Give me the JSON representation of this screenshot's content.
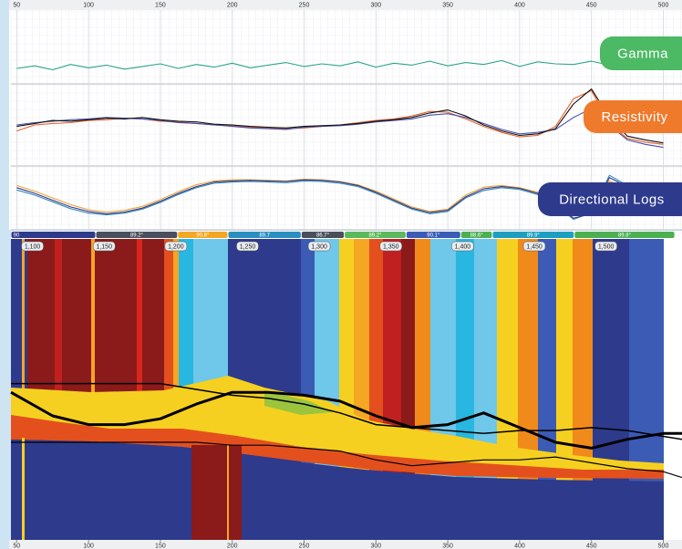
{
  "chart_data": [
    {
      "type": "line",
      "title": "Gamma",
      "badge_color": "#4cb964",
      "xlim": [
        46,
        513
      ],
      "xticks": [
        50,
        100,
        150,
        200,
        250,
        300,
        350,
        400,
        450,
        500
      ],
      "ylim": [
        0,
        100
      ],
      "grid": true,
      "x": [
        50,
        62.5,
        75,
        87.5,
        100,
        112.5,
        125,
        137.5,
        150,
        162.5,
        175,
        187.5,
        200,
        212.5,
        225,
        237.5,
        250,
        262.5,
        275,
        287.5,
        300,
        312.5,
        325,
        337.5,
        350,
        362.5,
        375,
        387.5,
        400,
        412.5,
        425,
        437.5,
        450,
        462.5,
        475,
        487.5,
        500
      ],
      "series": [
        {
          "color": "#2aa58a",
          "values": [
            18,
            22,
            16,
            24,
            19,
            23,
            17,
            21,
            25,
            18,
            24,
            20,
            26,
            19,
            23,
            27,
            21,
            25,
            22,
            28,
            20,
            26,
            23,
            29,
            22,
            27,
            24,
            30,
            21,
            28,
            25,
            24,
            29,
            23,
            27,
            26,
            30
          ]
        }
      ]
    },
    {
      "type": "line",
      "title": "Resistivity",
      "badge_color": "#f07a2c",
      "xlim": [
        46,
        513
      ],
      "ylim": [
        0,
        100
      ],
      "grid": true,
      "x": [
        50,
        62.5,
        75,
        87.5,
        100,
        112.5,
        125,
        137.5,
        150,
        162.5,
        175,
        187.5,
        200,
        212.5,
        225,
        237.5,
        250,
        262.5,
        275,
        287.5,
        300,
        312.5,
        325,
        337.5,
        350,
        362.5,
        375,
        387.5,
        400,
        412.5,
        425,
        437.5,
        450,
        462.5,
        475,
        487.5,
        500
      ],
      "series": [
        {
          "color": "#e8602c",
          "values": [
            42,
            50,
            52,
            53,
            56,
            57,
            59,
            58,
            55,
            54,
            52,
            50,
            49,
            47,
            46,
            45,
            46,
            48,
            50,
            53,
            56,
            58,
            62,
            68,
            67,
            58,
            48,
            40,
            34,
            36,
            48,
            85,
            96,
            52,
            32,
            27,
            24
          ]
        },
        {
          "color": "#4450b0",
          "values": [
            50,
            53,
            55,
            57,
            58,
            60,
            59,
            58,
            56,
            53,
            52,
            50,
            48,
            46,
            45,
            44,
            47,
            48,
            49,
            51,
            54,
            56,
            58,
            63,
            65,
            60,
            52,
            44,
            38,
            40,
            44,
            60,
            72,
            50,
            30,
            24,
            20
          ]
        },
        {
          "color": "#111111",
          "values": [
            48,
            52,
            56,
            55,
            57,
            59,
            58,
            60,
            57,
            55,
            54,
            51,
            50,
            48,
            47,
            46,
            48,
            49,
            50,
            52,
            55,
            57,
            60,
            66,
            70,
            62,
            50,
            42,
            36,
            38,
            45,
            78,
            98,
            60,
            35,
            30,
            26
          ]
        }
      ]
    },
    {
      "type": "line",
      "title": "Directional Logs",
      "badge_color": "#2e3a8c",
      "xlim": [
        46,
        513
      ],
      "ylim": [
        0,
        100
      ],
      "grid": true,
      "x": [
        50,
        62.5,
        75,
        87.5,
        100,
        112.5,
        125,
        137.5,
        150,
        162.5,
        175,
        187.5,
        200,
        212.5,
        225,
        237.5,
        250,
        262.5,
        275,
        287.5,
        300,
        312.5,
        325,
        337.5,
        350,
        362.5,
        375,
        387.5,
        400,
        412.5,
        425,
        437.5,
        450,
        462.5,
        475,
        487.5,
        500
      ],
      "series": [
        {
          "color": "#f0a030",
          "values": [
            72,
            62,
            50,
            38,
            29,
            25,
            28,
            35,
            47,
            61,
            73,
            80,
            82,
            82,
            81,
            80,
            83,
            82,
            79,
            73,
            62,
            48,
            34,
            26,
            30,
            55,
            69,
            72,
            68,
            60,
            44,
            18,
            20,
            80,
            66,
            50,
            36
          ]
        },
        {
          "color": "#3a8ab8",
          "values": [
            64,
            55,
            43,
            31,
            23,
            20,
            23,
            30,
            42,
            56,
            68,
            76,
            78,
            79,
            78,
            77,
            80,
            79,
            76,
            70,
            58,
            44,
            30,
            22,
            26,
            50,
            63,
            68,
            65,
            56,
            38,
            12,
            24,
            90,
            72,
            55,
            40
          ]
        },
        {
          "color": "#2e3a8c",
          "values": [
            68,
            58,
            46,
            34,
            26,
            22,
            25,
            32,
            44,
            58,
            70,
            78,
            80,
            81,
            80,
            79,
            82,
            81,
            78,
            72,
            60,
            46,
            32,
            24,
            28,
            52,
            66,
            70,
            67,
            58,
            40,
            14,
            22,
            86,
            70,
            52,
            38
          ]
        }
      ]
    },
    {
      "type": "line",
      "xlim": [
        46,
        513
      ],
      "xticks": [
        50,
        100,
        150,
        200,
        250,
        300,
        350,
        400,
        450,
        500
      ],
      "ylim": [
        0,
        100
      ],
      "depth_lim": [
        1085,
        1553
      ],
      "depth_ticks": [
        {
          "value": 1100,
          "label": "1,100"
        },
        {
          "value": 1150,
          "label": "1,150"
        },
        {
          "value": 1200,
          "label": "1,200"
        },
        {
          "value": 1250,
          "label": "1,250"
        },
        {
          "value": 1300,
          "label": "1,300"
        },
        {
          "value": 1350,
          "label": "1,350"
        },
        {
          "value": 1400,
          "label": "1,400"
        },
        {
          "value": 1450,
          "label": "1,450"
        },
        {
          "value": 1500,
          "label": "1,500"
        }
      ],
      "inclination_segments": [
        {
          "label": "90",
          "start": 46,
          "end": 105,
          "color": "#2e3a8c"
        },
        {
          "label": "89.2°",
          "start": 105,
          "end": 162,
          "color": "#4a4f5c"
        },
        {
          "label": "90.8°",
          "start": 162,
          "end": 197,
          "color": "#f5a623"
        },
        {
          "label": "89.7",
          "start": 197,
          "end": 248,
          "color": "#2a8fc0"
        },
        {
          "label": "86.7°",
          "start": 248,
          "end": 278,
          "color": "#4a4f5c"
        },
        {
          "label": "89.2°",
          "start": 278,
          "end": 321,
          "color": "#5cb85c"
        },
        {
          "label": "90.1°",
          "start": 321,
          "end": 359,
          "color": "#3b5bb5"
        },
        {
          "label": "88.6°",
          "start": 359,
          "end": 381,
          "color": "#4caf50"
        },
        {
          "label": "89.9°",
          "start": 381,
          "end": 438,
          "color": "#1e9fc0"
        },
        {
          "label": "89.8°",
          "start": 438,
          "end": 508,
          "color": "#4caf50"
        }
      ],
      "x": [
        46,
        75,
        100,
        125,
        150,
        175,
        200,
        225,
        250,
        275,
        300,
        325,
        350,
        375,
        400,
        425,
        450,
        475,
        500,
        513
      ],
      "series": [
        {
          "color": "#000000",
          "width": 3,
          "values": [
            49,
            41,
            38,
            38,
            40,
            45,
            49,
            49,
            48,
            46,
            41,
            37,
            38,
            42,
            37,
            32,
            30,
            33,
            35,
            35
          ]
        },
        {
          "color": "#000000",
          "width": 1.5,
          "values": [
            52,
            52,
            52,
            52,
            52,
            50,
            48,
            47,
            45,
            42,
            38,
            37,
            36,
            35,
            36,
            36,
            37,
            36,
            34,
            33
          ]
        },
        {
          "color": "#000000",
          "width": 1.2,
          "values": [
            32,
            32,
            32,
            32,
            32,
            32,
            31,
            31,
            30,
            29,
            26,
            24,
            25,
            26,
            26,
            27,
            25,
            23,
            22,
            20
          ]
        }
      ]
    }
  ]
}
